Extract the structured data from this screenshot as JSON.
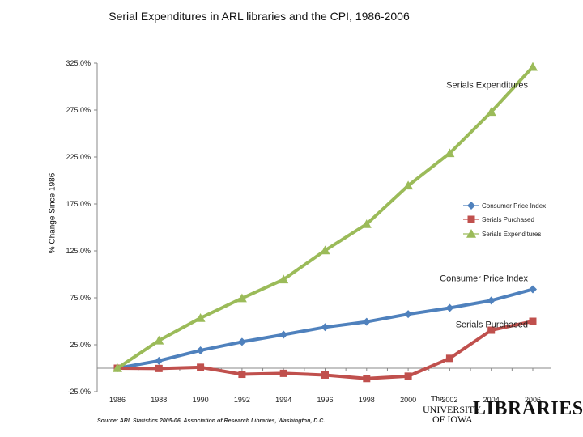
{
  "chart_data": {
    "type": "line",
    "title": "Serial Expenditures in ARL libraries and the CPI, 1986-2006",
    "xlabel": "",
    "ylabel": "% Change Since 1986",
    "ylim": [
      -25,
      325
    ],
    "yticks": [
      -25,
      25,
      75,
      125,
      175,
      225,
      275,
      325
    ],
    "ytick_labels": [
      "-25.0%",
      "25.0%",
      "75.0%",
      "125.0%",
      "175.0%",
      "225.0%",
      "275.0%",
      "325.0%"
    ],
    "categories": [
      "1986",
      "1987",
      "1988",
      "1989",
      "1990",
      "1991",
      "1992",
      "1993",
      "1994",
      "1995",
      "1996",
      "1997",
      "1998",
      "1999",
      "2000",
      "2001",
      "2002",
      "2003",
      "2004",
      "2005",
      "2006"
    ],
    "xtick_labels": [
      "1986",
      "1988",
      "1990",
      "1992",
      "1994",
      "1996",
      "1998",
      "2000",
      "2002",
      "2004",
      "2006"
    ],
    "grid": false,
    "legend_position": "right",
    "series": [
      {
        "name": "Consumer Price Index",
        "color": "#4f81bd",
        "marker": "diamond",
        "x": [
          "1986",
          "1988",
          "1990",
          "1992",
          "1994",
          "1996",
          "1998",
          "2000",
          "2002",
          "2004",
          "2006"
        ],
        "values": [
          0,
          7.9,
          19.0,
          28.1,
          35.8,
          43.7,
          49.5,
          57.6,
          64.2,
          72.1,
          84.1
        ]
      },
      {
        "name": "Serials Purchased",
        "color": "#c0504d",
        "marker": "square",
        "x": [
          "1986",
          "1988",
          "1990",
          "1992",
          "1994",
          "1996",
          "1998",
          "2000",
          "2002",
          "2004",
          "2006"
        ],
        "values": [
          0,
          -0.3,
          1.0,
          -6.5,
          -5.5,
          -7.3,
          -11.0,
          -8.5,
          10.5,
          40.5,
          50.0
        ]
      },
      {
        "name": "Serials Expenditures",
        "color": "#9bbb59",
        "marker": "triangle",
        "x": [
          "1986",
          "1988",
          "1990",
          "1992",
          "1994",
          "1996",
          "1998",
          "2000",
          "2002",
          "2004",
          "2006"
        ],
        "values": [
          0,
          29.5,
          53.5,
          74.5,
          94.5,
          125.5,
          153.5,
          194.5,
          229.0,
          273.0,
          321.0
        ]
      }
    ],
    "annotations": [
      {
        "text": "Serials Expenditures",
        "anchor_year": "2006",
        "anchor_value": 302
      },
      {
        "text": "Consumer Price Index",
        "anchor_year": "2006",
        "anchor_value": 96
      },
      {
        "text": "Serials Purchased",
        "anchor_year": "2006",
        "anchor_value": 47
      }
    ]
  },
  "source": "Source: ARL Statistics 2005-06, Association of Research Libraries, Washington, D.C.",
  "logo": {
    "line1": "The",
    "line2": "UNIVERSITY",
    "line3": "OF IOWA",
    "word": "LIBRARIES"
  }
}
